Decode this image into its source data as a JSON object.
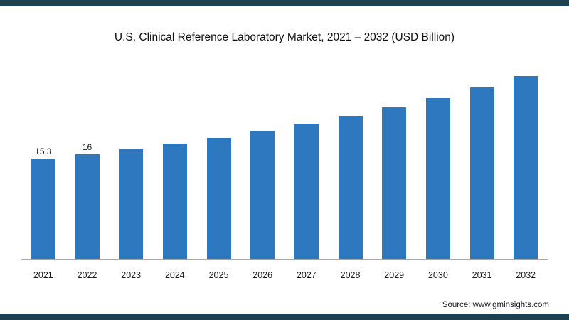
{
  "title": "U.S. Clinical Reference Laboratory Market, 2021 – 2032 (USD Billion)",
  "source": "Source: www.gminsights.com",
  "colors": {
    "bar": "#2e78bf",
    "border_strip": "#1c4252",
    "background": "#ffffff"
  },
  "chart_data": {
    "type": "bar",
    "title": "U.S. Clinical Reference Laboratory Market, 2021 – 2032 (USD Billion)",
    "categories": [
      "2021",
      "2022",
      "2023",
      "2024",
      "2025",
      "2026",
      "2027",
      "2028",
      "2029",
      "2030",
      "2031",
      "2032"
    ],
    "values": [
      15.3,
      16,
      16.8,
      17.6,
      18.5,
      19.6,
      20.7,
      21.9,
      23.2,
      24.6,
      26.2,
      27.9
    ],
    "data_labels": [
      "15.3",
      "16",
      "",
      "",
      "",
      "",
      "",
      "",
      "",
      "",
      "",
      ""
    ],
    "xlabel": "",
    "ylabel": "",
    "ylim": [
      0,
      29
    ],
    "grid": false,
    "legend": "none",
    "y_axis_shown": false
  }
}
